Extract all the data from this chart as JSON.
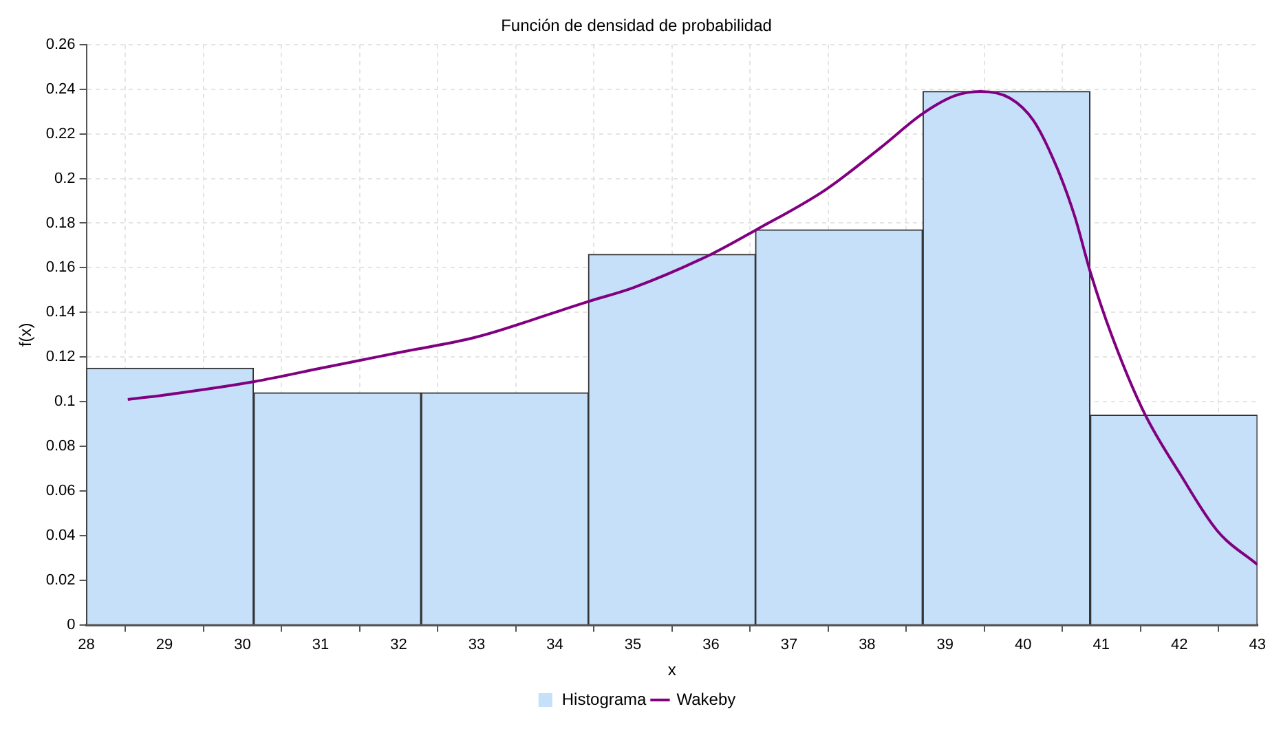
{
  "chart_data": {
    "type": "histogram",
    "title": "Función de densidad de probabilidad",
    "xlabel": "x",
    "ylabel": "f(x)",
    "bins": [
      28,
      30.14,
      32.29,
      34.43,
      36.57,
      38.71,
      40.86,
      43
    ],
    "xlim": [
      28,
      43
    ],
    "xticks": [
      28,
      29,
      30,
      31,
      32,
      33,
      34,
      35,
      36,
      37,
      38,
      39,
      40,
      41,
      42,
      43
    ],
    "ylim": [
      0,
      0.26
    ],
    "yticks": [
      0,
      0.02,
      0.04,
      0.06,
      0.08,
      0.1,
      0.12,
      0.14,
      0.16,
      0.18,
      0.2,
      0.22,
      0.24,
      0.26
    ],
    "grid": true,
    "legend": "bottom",
    "series": [
      {
        "name": "Histograma",
        "color": "#c6e0fa",
        "values": [
          0.115,
          0.104,
          0.104,
          0.166,
          0.177,
          0.239,
          0.094
        ]
      },
      {
        "name": "Wakeby",
        "type": "line",
        "color": "#800080",
        "marker": "none",
        "line_style": "solid",
        "x": [
          28.53,
          29,
          30.15,
          31,
          32,
          33,
          34,
          34.44,
          35,
          36,
          36.58,
          37.47,
          38.18,
          38.71,
          39.12,
          39.45,
          39.83,
          40.13,
          40.43,
          40.66,
          40.86,
          41.13,
          41.55,
          42.02,
          42.49,
          43
        ],
        "values": [
          0.101,
          0.103,
          0.109,
          0.115,
          0.122,
          0.129,
          0.14,
          0.145,
          0.151,
          0.166,
          0.177,
          0.195,
          0.214,
          0.229,
          0.237,
          0.239,
          0.236,
          0.226,
          0.205,
          0.183,
          0.158,
          0.13,
          0.095,
          0.067,
          0.042,
          0.027
        ]
      }
    ]
  }
}
